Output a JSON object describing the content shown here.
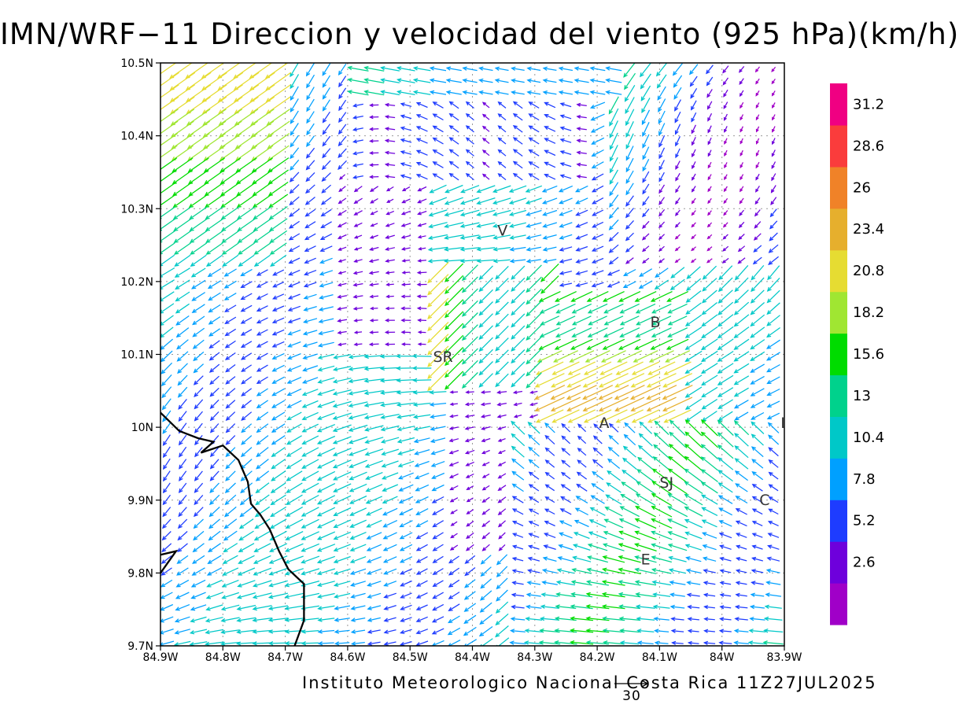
{
  "title": "IMN/WRF−11 Direccion y velocidad del viento (925 hPa)(km/h)",
  "footer": "Instituto Meteorologico Nacional Costa Rica 11Z27JUL2025",
  "reference_vector": {
    "value": "30"
  },
  "map": {
    "lon_range": [
      -84.9,
      -83.9
    ],
    "lat_range": [
      9.7,
      10.5
    ],
    "grid": "dotted",
    "x_ticks": [
      {
        "value": -84.9,
        "label": "84.9W"
      },
      {
        "value": -84.8,
        "label": "84.8W"
      },
      {
        "value": -84.7,
        "label": "84.7W"
      },
      {
        "value": -84.6,
        "label": "84.6W"
      },
      {
        "value": -84.5,
        "label": "84.5W"
      },
      {
        "value": -84.4,
        "label": "84.4W"
      },
      {
        "value": -84.3,
        "label": "84.3W"
      },
      {
        "value": -84.2,
        "label": "84.2W"
      },
      {
        "value": -84.1,
        "label": "84.1W"
      },
      {
        "value": -84.0,
        "label": "84W"
      },
      {
        "value": -83.9,
        "label": "83.9W"
      }
    ],
    "y_ticks": [
      {
        "value": 10.5,
        "label": "10.5N"
      },
      {
        "value": 10.4,
        "label": "10.4N"
      },
      {
        "value": 10.3,
        "label": "10.3N"
      },
      {
        "value": 10.2,
        "label": "10.2N"
      },
      {
        "value": 10.1,
        "label": "10.1N"
      },
      {
        "value": 10.0,
        "label": "10N"
      },
      {
        "value": 9.9,
        "label": "9.9N"
      },
      {
        "value": 9.8,
        "label": "9.8N"
      },
      {
        "value": 9.7,
        "label": "9.7N"
      }
    ],
    "places": [
      {
        "label": "V",
        "lon": -84.36,
        "lat": 10.263
      },
      {
        "label": "SR",
        "lon": -84.463,
        "lat": 10.09
      },
      {
        "label": "B",
        "lon": -84.115,
        "lat": 10.137
      },
      {
        "label": "A",
        "lon": -84.197,
        "lat": 9.999
      },
      {
        "label": "I",
        "lon": -83.906,
        "lat": 9.999
      },
      {
        "label": "SJ",
        "lon": -84.1,
        "lat": 9.917
      },
      {
        "label": "C",
        "lon": -83.94,
        "lat": 9.893
      },
      {
        "label": "E",
        "lon": -84.13,
        "lat": 9.812
      }
    ],
    "coastline": [
      [
        -84.9,
        10.02
      ],
      [
        -84.87,
        9.995
      ],
      [
        -84.84,
        9.985
      ],
      [
        -84.815,
        9.98
      ],
      [
        -84.835,
        9.965
      ],
      [
        -84.8,
        9.975
      ],
      [
        -84.775,
        9.955
      ],
      [
        -84.76,
        9.925
      ],
      [
        -84.755,
        9.895
      ],
      [
        -84.74,
        9.88
      ],
      [
        -84.725,
        9.86
      ],
      [
        -84.71,
        9.83
      ],
      [
        -84.695,
        9.805
      ],
      [
        -84.67,
        9.785
      ],
      [
        -84.67,
        9.76
      ],
      [
        -84.67,
        9.735
      ],
      [
        -84.685,
        9.7
      ]
    ],
    "coastline_peninsula": [
      [
        -84.9,
        9.825
      ],
      [
        -84.875,
        9.83
      ],
      [
        -84.9,
        9.8
      ]
    ]
  },
  "colorbar": {
    "colors": [
      "#a000c8",
      "#6e00dc",
      "#1e3cff",
      "#00a0ff",
      "#00c8c8",
      "#00d28c",
      "#00dc00",
      "#a0e632",
      "#e6dc32",
      "#e6af2d",
      "#f08228",
      "#fa3c3c",
      "#f00082"
    ],
    "labels": [
      "2.6",
      "5.2",
      "7.8",
      "10.4",
      "13",
      "15.6",
      "18.2",
      "20.8",
      "23.4",
      "26",
      "28.6",
      "31.2"
    ]
  }
}
